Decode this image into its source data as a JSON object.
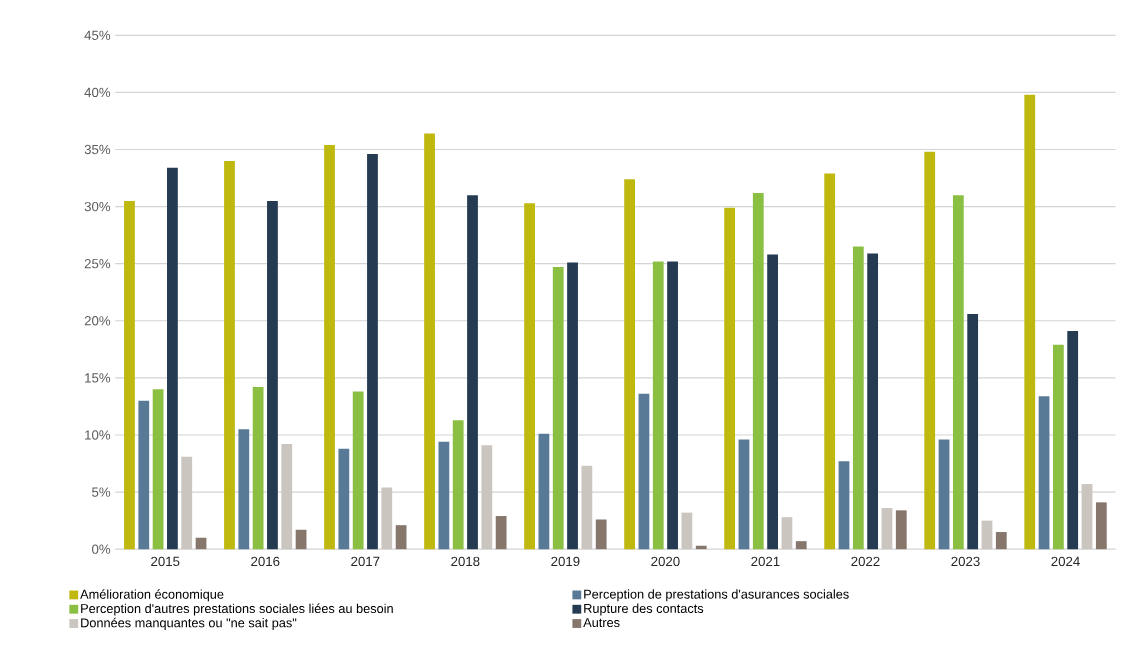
{
  "chart_data": {
    "type": "bar",
    "categories": [
      "2015",
      "2016",
      "2017",
      "2018",
      "2019",
      "2020",
      "2021",
      "2022",
      "2023",
      "2024"
    ],
    "series": [
      {
        "name": "Amélioration économique",
        "color": "#bfb80f",
        "values": [
          30.5,
          34.0,
          35.4,
          36.4,
          30.3,
          32.4,
          29.9,
          32.9,
          34.8,
          39.8
        ]
      },
      {
        "name": "Perception de prestations d'asurances sociales",
        "color": "#587a96",
        "values": [
          13.0,
          10.5,
          8.8,
          9.4,
          10.1,
          13.6,
          9.6,
          7.7,
          9.6,
          13.4
        ]
      },
      {
        "name": "Perception d'autres prestations sociales liées au besoin",
        "color": "#8bbf42",
        "values": [
          14.0,
          14.2,
          13.8,
          11.3,
          24.7,
          25.2,
          31.2,
          26.5,
          31.0,
          17.9
        ]
      },
      {
        "name": "Rupture des contacts",
        "color": "#253b52",
        "values": [
          33.4,
          30.5,
          34.6,
          31.0,
          25.1,
          25.2,
          25.8,
          25.9,
          20.6,
          19.1
        ]
      },
      {
        "name": "Données manquantes ou \"ne sait pas\"",
        "color": "#cbc5c0",
        "values": [
          8.1,
          9.2,
          5.4,
          9.1,
          7.3,
          3.2,
          2.8,
          3.6,
          2.5,
          5.7
        ]
      },
      {
        "name": "Autres",
        "color": "#86766c",
        "values": [
          1.0,
          1.7,
          2.1,
          2.9,
          2.6,
          0.3,
          0.7,
          3.4,
          1.5,
          4.1
        ]
      }
    ],
    "ylim": [
      0,
      45
    ],
    "yticks": [
      {
        "value": 0,
        "label": "0%"
      },
      {
        "value": 5,
        "label": "5%"
      },
      {
        "value": 10,
        "label": "10%"
      },
      {
        "value": 15,
        "label": "15%"
      },
      {
        "value": 20,
        "label": "20%"
      },
      {
        "value": 25,
        "label": "25%"
      },
      {
        "value": 30,
        "label": "30%"
      },
      {
        "value": 35,
        "label": "35%"
      },
      {
        "value": 40,
        "label": "40%"
      },
      {
        "value": 45,
        "label": "45%"
      }
    ],
    "grid": "y",
    "legend": "bottom"
  }
}
